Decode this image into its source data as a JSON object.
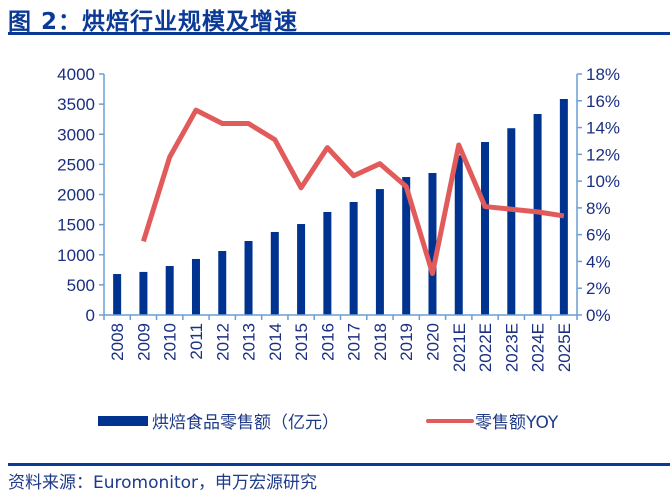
{
  "title": "图 2：烘焙行业规模及增速",
  "source": "资料来源：Euromonitor，申万宏源研究",
  "colors": {
    "bar": "#00338f",
    "line": "#e25b5b",
    "axis": "#6a9fd4",
    "title": "#0b3a96"
  },
  "chart_data": {
    "type": "bar+line",
    "categories": [
      "2008",
      "2009",
      "2010",
      "2011",
      "2012",
      "2013",
      "2014",
      "2015",
      "2016",
      "2017",
      "2018",
      "2019",
      "2020",
      "2021E",
      "2022E",
      "2023E",
      "2024E",
      "2025E"
    ],
    "series": [
      {
        "name": "烘焙食品零售额（亿元）",
        "type": "bar",
        "axis": "left",
        "values": [
          680,
          715,
          813,
          930,
          1062,
          1228,
          1378,
          1510,
          1710,
          1876,
          2090,
          2290,
          2357,
          2650,
          2871,
          3100,
          3336,
          3585
        ]
      },
      {
        "name": "零售额YOY",
        "type": "line",
        "axis": "right",
        "values": [
          null,
          5.5,
          11.8,
          15.3,
          14.3,
          14.3,
          13.1,
          9.5,
          12.5,
          10.4,
          11.3,
          9.6,
          3.1,
          12.7,
          8.1,
          7.9,
          7.7,
          7.4
        ]
      }
    ],
    "left_axis": {
      "ylim": [
        0,
        4000
      ],
      "ticks": [
        "0",
        "500",
        "1000",
        "1500",
        "2000",
        "2500",
        "3000",
        "3500",
        "4000"
      ]
    },
    "right_axis": {
      "ylim": [
        0,
        18
      ],
      "ticks": [
        "0%",
        "2%",
        "4%",
        "6%",
        "8%",
        "10%",
        "12%",
        "14%",
        "16%",
        "18%"
      ]
    },
    "grid": false,
    "legend": "bottom"
  }
}
